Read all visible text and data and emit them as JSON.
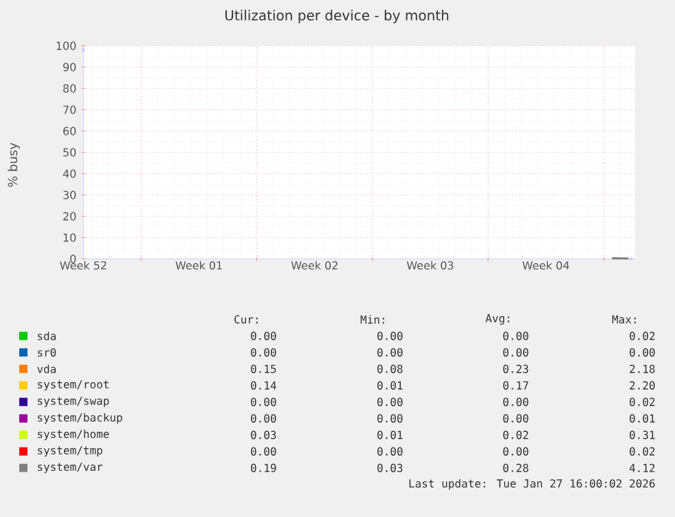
{
  "chart_data": {
    "type": "line",
    "title": "Utilization per device - by month",
    "ylabel": "% busy",
    "categories": [
      "Week 52",
      null,
      null,
      null,
      null,
      null,
      null,
      "Week 01",
      null,
      null,
      null,
      null,
      null,
      null,
      "Week 02",
      null,
      null,
      null,
      null,
      null,
      null,
      "Week 03",
      null,
      null,
      null,
      null,
      null,
      null,
      "Week 04",
      null,
      null,
      null,
      null,
      null
    ],
    "ylim": [
      0,
      100
    ],
    "yticks": [
      0,
      10,
      20,
      30,
      40,
      50,
      60,
      70,
      80,
      90,
      100
    ],
    "grid": true,
    "legend": "bottom",
    "series": [
      {
        "name": "sda",
        "color": "#00cc00",
        "values": [
          null,
          null,
          null,
          null,
          null,
          null,
          null,
          null,
          null,
          null,
          null,
          null,
          null,
          null,
          null,
          null,
          null,
          null,
          null,
          null,
          null,
          null,
          null,
          null,
          null,
          null,
          null,
          null,
          null,
          null,
          null,
          null,
          null,
          null
        ]
      },
      {
        "name": "sr0",
        "color": "#0066b3",
        "values": [
          null,
          null,
          null,
          null,
          null,
          null,
          null,
          null,
          null,
          null,
          null,
          null,
          null,
          null,
          null,
          null,
          null,
          null,
          null,
          null,
          null,
          null,
          null,
          null,
          null,
          null,
          null,
          null,
          null,
          null,
          null,
          null,
          null,
          null
        ]
      },
      {
        "name": "vda",
        "color": "#ff8000",
        "values": [
          null,
          null,
          null,
          null,
          null,
          null,
          null,
          null,
          null,
          null,
          null,
          null,
          null,
          null,
          null,
          null,
          null,
          null,
          null,
          null,
          null,
          null,
          null,
          null,
          null,
          null,
          null,
          null,
          null,
          null,
          null,
          null,
          null,
          null
        ]
      },
      {
        "name": "system/root",
        "color": "#ffcc00",
        "values": [
          null,
          null,
          null,
          null,
          null,
          null,
          null,
          null,
          null,
          null,
          null,
          null,
          null,
          null,
          null,
          null,
          null,
          null,
          null,
          null,
          null,
          null,
          null,
          null,
          null,
          null,
          null,
          null,
          null,
          null,
          null,
          null,
          null,
          null
        ]
      },
      {
        "name": "system/swap",
        "color": "#330099",
        "values": [
          null,
          null,
          null,
          null,
          null,
          null,
          null,
          null,
          null,
          null,
          null,
          null,
          null,
          null,
          null,
          null,
          null,
          null,
          null,
          null,
          null,
          null,
          null,
          null,
          null,
          null,
          null,
          null,
          null,
          null,
          null,
          null,
          null,
          null
        ]
      },
      {
        "name": "system/backup",
        "color": "#990099",
        "values": [
          null,
          null,
          null,
          null,
          null,
          null,
          null,
          null,
          null,
          null,
          null,
          null,
          null,
          null,
          null,
          null,
          null,
          null,
          null,
          null,
          null,
          null,
          null,
          null,
          null,
          null,
          null,
          null,
          null,
          null,
          null,
          null,
          null,
          null
        ]
      },
      {
        "name": "system/home",
        "color": "#ccff00",
        "values": [
          null,
          null,
          null,
          null,
          null,
          null,
          null,
          null,
          null,
          null,
          null,
          null,
          null,
          null,
          null,
          null,
          null,
          null,
          null,
          null,
          null,
          null,
          null,
          null,
          null,
          null,
          null,
          null,
          null,
          null,
          null,
          null,
          null,
          null
        ]
      },
      {
        "name": "system/tmp",
        "color": "#ff0000",
        "values": [
          null,
          null,
          null,
          null,
          null,
          null,
          null,
          null,
          null,
          null,
          null,
          null,
          null,
          null,
          null,
          null,
          null,
          null,
          null,
          null,
          null,
          null,
          null,
          null,
          null,
          null,
          null,
          null,
          null,
          null,
          null,
          null,
          null,
          null
        ]
      },
      {
        "name": "system/var",
        "color": "#808080",
        "values": [
          null,
          null,
          null,
          null,
          null,
          null,
          null,
          null,
          null,
          null,
          null,
          null,
          null,
          null,
          null,
          null,
          null,
          null,
          null,
          null,
          null,
          null,
          null,
          null,
          null,
          null,
          null,
          null,
          null,
          null,
          null,
          null,
          0.3,
          0.2
        ]
      }
    ],
    "annotations": [
      "Cur:",
      "Min:",
      "Avg:",
      "Max:",
      "0.00",
      "0.00",
      "0.00",
      "0.02",
      "0.00",
      "0.00",
      "0.00",
      "0.00",
      "0.15",
      "0.08",
      "0.23",
      "2.18",
      "0.14",
      "0.01",
      "0.17",
      "2.20",
      "0.00",
      "0.00",
      "0.00",
      "0.02",
      "0.00",
      "0.00",
      "0.00",
      "0.01",
      "0.03",
      "0.01",
      "0.02",
      "0.31",
      "0.00",
      "0.00",
      "0.00",
      "0.02",
      "0.19",
      "0.03",
      "0.28",
      "4.12",
      "Last update: Tue Jan 27 16:00:02 2026"
    ]
  }
}
